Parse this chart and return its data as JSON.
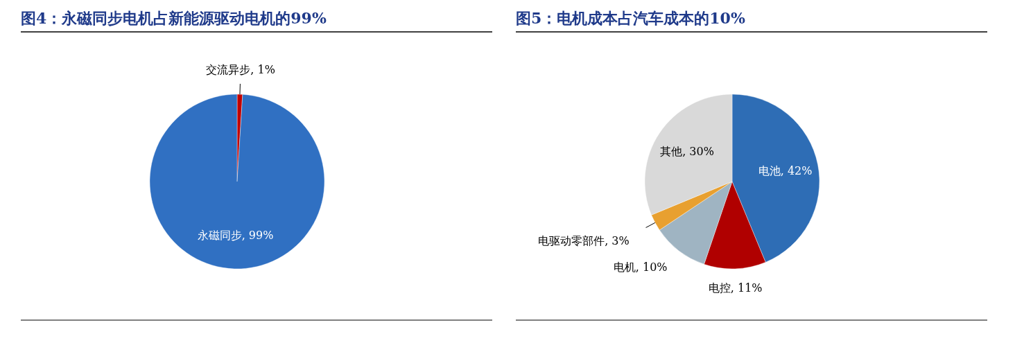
{
  "chart_data": [
    {
      "type": "pie",
      "title": "图4：永磁同步电机占新能源驱动电机的99%",
      "categories": [
        "交流异步",
        "永磁同步"
      ],
      "values": [
        1,
        99
      ],
      "colors": [
        "#c00000",
        "#3070c2"
      ],
      "value_labels": [
        "1%",
        "99%"
      ],
      "legend": false
    },
    {
      "type": "pie",
      "title": "图5：电机成本占汽车成本的10%",
      "categories": [
        "电池",
        "电控",
        "电机",
        "电驱动零部件",
        "其他"
      ],
      "values": [
        42,
        11,
        10,
        3,
        30
      ],
      "colors": [
        "#2e6db5",
        "#b00000",
        "#9fb4c2",
        "#e8a030",
        "#d9d9d9"
      ],
      "value_labels": [
        "42%",
        "11%",
        "10%",
        "3%",
        "30%"
      ],
      "legend": false
    }
  ]
}
